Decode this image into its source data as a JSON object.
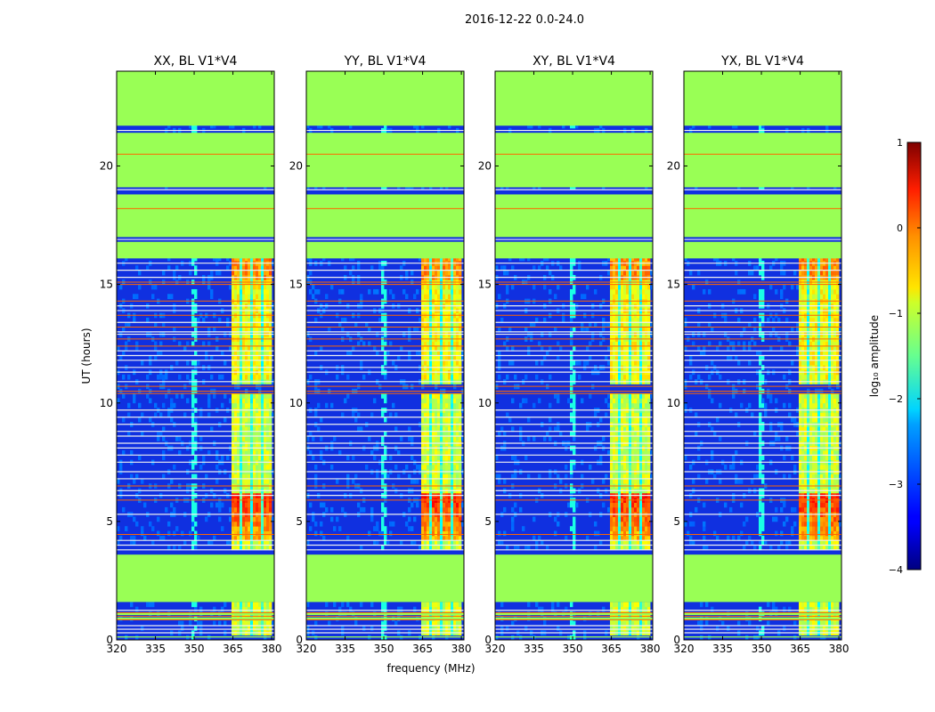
{
  "chart_data": {
    "type": "heatmap",
    "suptitle": "2016-12-22 0.0-24.0",
    "xlabel": "frequency (MHz)",
    "ylabel": "UT (hours)",
    "xlim": [
      320,
      381
    ],
    "ylim": [
      0,
      24
    ],
    "xticks": [
      320,
      335,
      350,
      365,
      380
    ],
    "yticks": [
      0,
      5,
      10,
      15,
      20
    ],
    "panels": [
      {
        "title": "XX, BL V1*V4",
        "pol": "XX",
        "rfi_band_mhz": [
          364,
          379
        ]
      },
      {
        "title": "YY, BL V1*V4",
        "pol": "YY",
        "rfi_band_mhz": [
          364,
          379
        ]
      },
      {
        "title": "XY, BL V1*V4",
        "pol": "XY",
        "rfi_band_mhz": [
          364,
          379
        ]
      },
      {
        "title": "YX, BL V1*V4",
        "pol": "YX",
        "rfi_band_mhz": [
          364,
          379
        ]
      }
    ],
    "flagged_ut_ranges": [
      [
        0.1,
        0.15
      ],
      [
        0.85,
        0.95
      ],
      [
        1.05,
        1.15
      ],
      [
        1.6,
        3.6
      ],
      [
        16.1,
        16.8
      ],
      [
        17.0,
        18.8
      ],
      [
        19.1,
        21.4
      ],
      [
        21.7,
        24.0
      ]
    ],
    "orange_lines_ut": [
      0.85,
      1.0,
      1.15,
      4.45,
      5.9,
      6.5,
      10.4,
      10.5,
      10.7,
      12.4,
      12.7,
      13.2,
      13.7,
      14.3,
      15.0,
      15.1,
      18.2,
      20.5
    ],
    "white_lines_ut": [
      0.3,
      0.45,
      0.6,
      1.25,
      3.8,
      4.0,
      4.2,
      5.3,
      6.1,
      6.3,
      6.8,
      7.1,
      7.5,
      7.8,
      8.1,
      8.3,
      8.6,
      8.8,
      9.1,
      9.4,
      9.7,
      10.9,
      11.3,
      11.5,
      11.8,
      12.0,
      12.2,
      12.9,
      13.0,
      13.4,
      13.9,
      14.1,
      15.3,
      15.6,
      15.9,
      16.9,
      19.0,
      21.5
    ],
    "colorbar": {
      "label": "log₁₀ amplitude",
      "min": -4,
      "max": 1,
      "ticks": [
        1,
        0,
        -1,
        -2,
        -3,
        -4
      ],
      "tick_labels": [
        "1",
        "0",
        "−1",
        "−2",
        "−3",
        "−4"
      ],
      "colormap": "jet",
      "flag_value": -1.0
    },
    "colors": {
      "flag": "#99ff55",
      "background_noise": "#1030e0",
      "orange_line": "#ff6600",
      "white_line": "#f0f0f0"
    }
  }
}
